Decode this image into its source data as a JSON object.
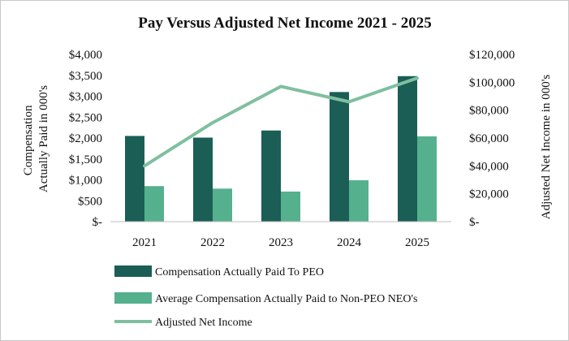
{
  "chart_data": {
    "type": "bar",
    "title": "Pay Versus Adjusted Net Income 2021 - 2025",
    "categories": [
      "2021",
      "2022",
      "2023",
      "2024",
      "2025"
    ],
    "ylabel_left": [
      "Compensation",
      "Actually Paid in 000's"
    ],
    "ylabel_right": "Adjusted Net Income in 000's",
    "ylim_left": [
      0,
      4000
    ],
    "ylim_right": [
      0,
      120000
    ],
    "left_ticks": [
      "$-",
      "$500",
      "$1,000",
      "$1,500",
      "$2,000",
      "$2,500",
      "$3,000",
      "$3,500",
      "$4,000"
    ],
    "left_tick_values": [
      0,
      500,
      1000,
      1500,
      2000,
      2500,
      3000,
      3500,
      4000
    ],
    "right_ticks": [
      "$-",
      "$20,000",
      "$40,000",
      "$60,000",
      "$80,000",
      "$100,000",
      "$120,000"
    ],
    "right_tick_values": [
      0,
      20000,
      40000,
      60000,
      80000,
      100000,
      120000
    ],
    "grid": false,
    "legend_position": "bottom",
    "series": [
      {
        "name": "Compensation Actually Paid To PEO",
        "type": "bar",
        "axis": "left",
        "color": "#1b5e56",
        "values": [
          2050,
          2010,
          2180,
          3100,
          3480
        ]
      },
      {
        "name": "Average Compensation Actually Paid to Non-PEO NEO's",
        "type": "bar",
        "axis": "left",
        "color": "#55b08e",
        "values": [
          850,
          790,
          720,
          990,
          2040
        ]
      },
      {
        "name": "Adjusted Net Income",
        "type": "line",
        "axis": "right",
        "color": "#7fbf9f",
        "values": [
          40000,
          71000,
          97000,
          86000,
          103000
        ]
      }
    ]
  }
}
